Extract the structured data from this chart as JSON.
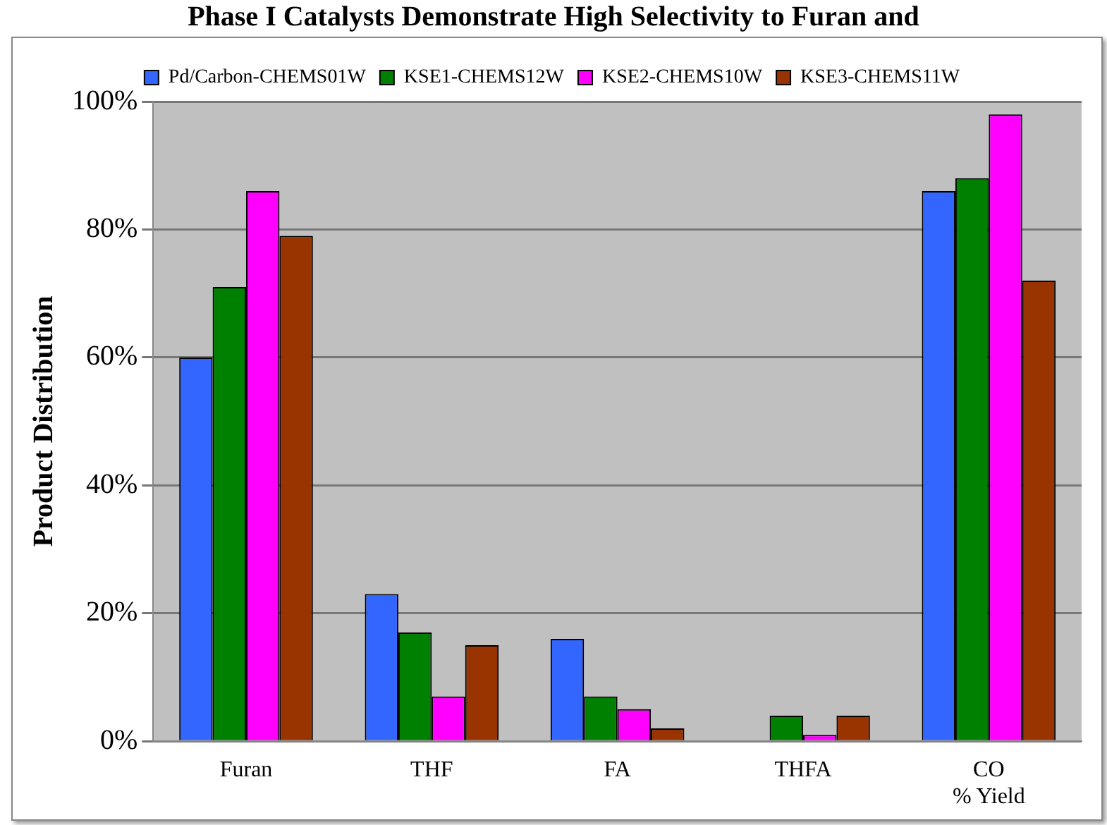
{
  "chart_data": {
    "type": "bar",
    "title": "Phase I Catalysts Demonstrate High Selectivity to Furan and",
    "ylabel": "Product Distribution",
    "categories": [
      "Furan",
      "THF",
      "FA",
      "THFA",
      "CO\n% Yield"
    ],
    "series": [
      {
        "name": "Pd/Carbon-CHEMS01W",
        "color": "#3366ff",
        "values": [
          60,
          23,
          16,
          0,
          86
        ]
      },
      {
        "name": "KSE1-CHEMS12W",
        "color": "#008000",
        "values": [
          71,
          17,
          7,
          4,
          88
        ]
      },
      {
        "name": "KSE2-CHEMS10W",
        "color": "#ff00ff",
        "values": [
          86,
          7,
          5,
          1,
          98
        ]
      },
      {
        "name": "KSE3-CHEMS11W",
        "color": "#993300",
        "values": [
          79,
          15,
          2,
          4,
          72
        ]
      }
    ],
    "ylim": [
      0,
      100
    ],
    "yticks": [
      {
        "value": 0,
        "label": "0%"
      },
      {
        "value": 20,
        "label": "20%"
      },
      {
        "value": 40,
        "label": "40%"
      },
      {
        "value": 60,
        "label": "60%"
      },
      {
        "value": 80,
        "label": "80%"
      },
      {
        "value": 100,
        "label": "100%"
      }
    ],
    "grid": "y",
    "legend": "top"
  }
}
